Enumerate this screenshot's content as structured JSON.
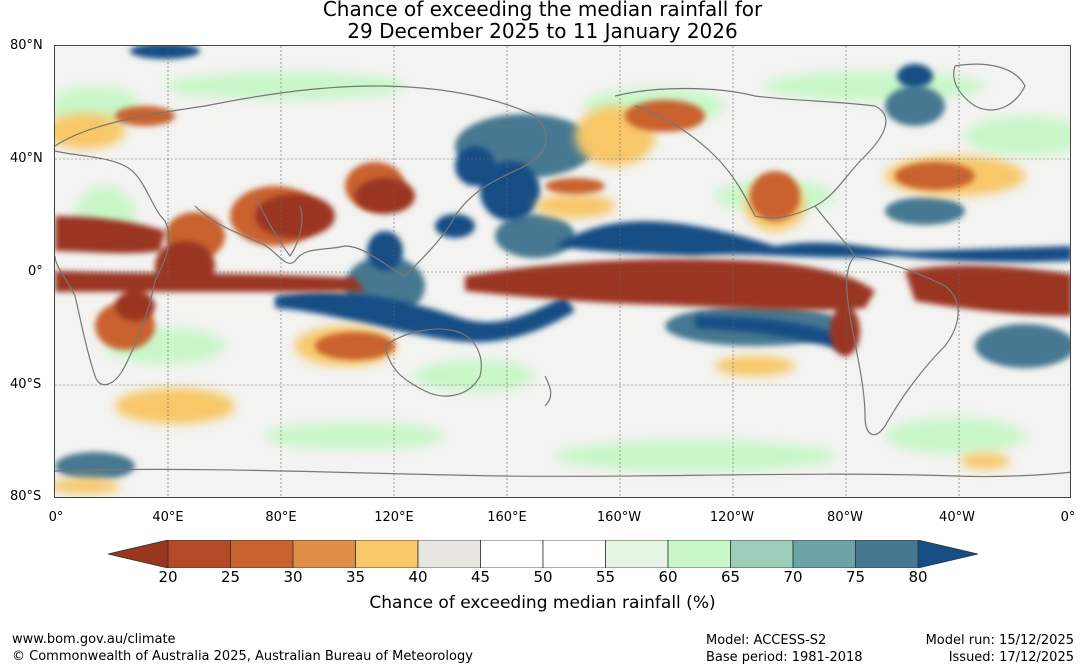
{
  "title_line1": "Chance of exceeding the median rainfall for",
  "title_line2": "29 December 2025 to 11 January 2026",
  "lat_labels": [
    "80°N",
    "40°N",
    "0°",
    "40°S",
    "80°S"
  ],
  "lon_labels": [
    "0°",
    "40°E",
    "80°E",
    "120°E",
    "160°E",
    "160°W",
    "120°W",
    "80°W",
    "40°W",
    "0°"
  ],
  "colorbar": {
    "ticks": [
      "20",
      "25",
      "30",
      "35",
      "40",
      "45",
      "50",
      "55",
      "60",
      "65",
      "70",
      "75",
      "80"
    ],
    "colors": [
      "#9a3520",
      "#b44a28",
      "#c9622f",
      "#de8f45",
      "#f7c768",
      "#e8e6e0",
      "#ffffff",
      "#ffffff",
      "#e6f4e4",
      "#c9f7c9",
      "#9ccdb8",
      "#6ba3a6",
      "#467891"
    ],
    "under_color": "#9a3520",
    "over_color": "#154e85",
    "label": "Chance of exceeding median rainfall (%)"
  },
  "map_colors": {
    "ocean_base": "#f3f3f1",
    "dry": "#9a3520",
    "dry_mid": "#c9622f",
    "dry_light": "#f7c768",
    "wet": "#154e85",
    "wet_mid": "#467891",
    "wet_light": "#c9f7c9",
    "coast": "#777777"
  },
  "footer": {
    "url": "www.bom.gov.au/climate",
    "copyright": "© Commonwealth of Australia 2025, Australian Bureau of Meteorology",
    "model": "Model: ACCESS-S2",
    "base_period": "Base period: 1981-2018",
    "model_run": "Model run: 15/12/2025",
    "issued": "Issued: 17/12/2025"
  }
}
